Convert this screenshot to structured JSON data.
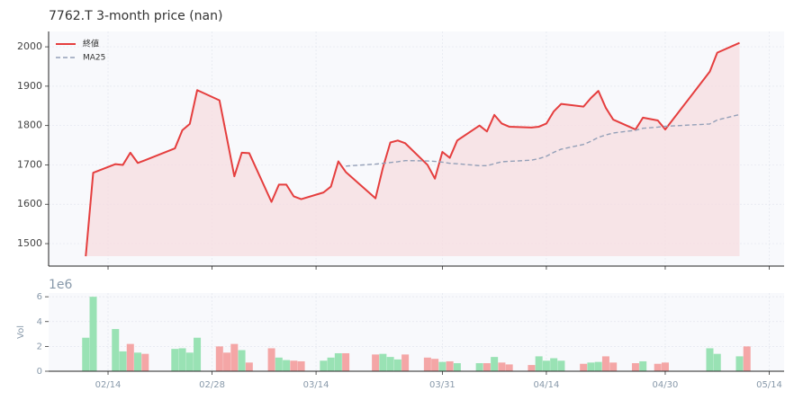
{
  "chart_data": [
    {
      "type": "line",
      "title": "7762.T  3-month price (nan)",
      "x": [
        "02/11",
        "02/12",
        "02/15",
        "02/16",
        "02/17",
        "02/18",
        "02/19",
        "02/23",
        "02/24",
        "02/25",
        "02/26",
        "03/01",
        "03/02",
        "03/03",
        "03/04",
        "03/05",
        "03/08",
        "03/09",
        "03/10",
        "03/11",
        "03/12",
        "03/15",
        "03/16",
        "03/17",
        "03/18",
        "03/22",
        "03/23",
        "03/24",
        "03/25",
        "03/26",
        "03/29",
        "03/30",
        "03/31",
        "04/01",
        "04/02",
        "04/05",
        "04/06",
        "04/07",
        "04/08",
        "04/09",
        "04/12",
        "04/13",
        "04/14",
        "04/15",
        "04/16",
        "04/19",
        "04/20",
        "04/21",
        "04/22",
        "04/23",
        "04/26",
        "04/27",
        "04/29",
        "04/30",
        "05/06",
        "05/07",
        "05/10",
        "05/11"
      ],
      "series": [
        {
          "name": "終値",
          "color": "#e53e3e",
          "fill": "#f7dce0",
          "values": [
            1468,
            1680,
            1702,
            1700,
            1731,
            1705,
            1712,
            1742,
            1788,
            1804,
            1890,
            1864,
            1768,
            1671,
            1731,
            1730,
            1606,
            1650,
            1650,
            1620,
            1613,
            1630,
            1645,
            1709,
            1682,
            1615,
            1693,
            1757,
            1762,
            1755,
            1700,
            1665,
            1733,
            1718,
            1762,
            1800,
            1785,
            1827,
            1805,
            1797,
            1795,
            1797,
            1805,
            1836,
            1855,
            1848,
            1870,
            1888,
            1845,
            1815,
            1790,
            1820,
            1813,
            1790,
            1937,
            1985,
            2010,
            null
          ]
        },
        {
          "name": "MA25",
          "color": "#94a0b8",
          "dash": true,
          "values": [
            null,
            null,
            null,
            null,
            null,
            null,
            null,
            null,
            null,
            null,
            null,
            null,
            null,
            null,
            null,
            null,
            null,
            null,
            null,
            null,
            null,
            null,
            null,
            null,
            1697,
            1702,
            1704,
            1706,
            1708,
            1711,
            1710,
            1709,
            1707,
            1704,
            1703,
            1698,
            1698,
            1703,
            1708,
            1709,
            1712,
            1716,
            1722,
            1732,
            1740,
            1752,
            1760,
            1770,
            1776,
            1781,
            1788,
            1793,
            1796,
            1798,
            1804,
            1814,
            1828,
            null
          ]
        }
      ],
      "xlim": [
        "02/06",
        "05/16"
      ],
      "ylim": [
        1443,
        2039
      ],
      "yticks": [
        1500,
        1600,
        1700,
        1800,
        1900,
        2000
      ],
      "grid": true,
      "legend": "upper left"
    },
    {
      "type": "bar",
      "ylabel": "Vol",
      "offset_label": "1e6",
      "x": [
        "02/11",
        "02/12",
        "02/15",
        "02/16",
        "02/17",
        "02/18",
        "02/19",
        "02/23",
        "02/24",
        "02/25",
        "02/26",
        "03/01",
        "03/02",
        "03/03",
        "03/04",
        "03/05",
        "03/08",
        "03/09",
        "03/10",
        "03/11",
        "03/12",
        "03/15",
        "03/16",
        "03/17",
        "03/18",
        "03/22",
        "03/23",
        "03/24",
        "03/25",
        "03/26",
        "03/29",
        "03/30",
        "03/31",
        "04/01",
        "04/02",
        "04/05",
        "04/06",
        "04/07",
        "04/08",
        "04/09",
        "04/12",
        "04/13",
        "04/14",
        "04/15",
        "04/16",
        "04/19",
        "04/20",
        "04/21",
        "04/22",
        "04/23",
        "04/26",
        "04/27",
        "04/29",
        "04/30",
        "05/06",
        "05/07",
        "05/10",
        "05/11"
      ],
      "values": [
        2.7,
        6.0,
        3.4,
        1.6,
        2.2,
        1.5,
        1.4,
        1.8,
        1.85,
        1.5,
        2.7,
        2.0,
        1.5,
        2.2,
        1.7,
        0.7,
        1.85,
        1.1,
        0.9,
        0.85,
        0.8,
        0.85,
        1.1,
        1.45,
        1.45,
        1.35,
        1.4,
        1.15,
        0.95,
        1.35,
        1.1,
        1.0,
        0.75,
        0.8,
        0.65,
        0.65,
        0.65,
        1.15,
        0.7,
        0.55,
        0.5,
        1.2,
        0.85,
        1.05,
        0.85,
        0.6,
        0.7,
        0.75,
        1.2,
        0.7,
        0.65,
        0.8,
        0.6,
        0.7,
        1.85,
        1.4,
        1.2,
        2.0
      ],
      "colors": [
        "#99e2b4",
        "#99e2b4",
        "#99e2b4",
        "#99e2b4",
        "#f4a6a6",
        "#99e2b4",
        "#f4a6a6",
        "#99e2b4",
        "#99e2b4",
        "#99e2b4",
        "#99e2b4",
        "#f4a6a6",
        "#f4a6a6",
        "#f4a6a6",
        "#99e2b4",
        "#f4a6a6",
        "#f4a6a6",
        "#99e2b4",
        "#99e2b4",
        "#f4a6a6",
        "#f4a6a6",
        "#99e2b4",
        "#99e2b4",
        "#99e2b4",
        "#f4a6a6",
        "#f4a6a6",
        "#99e2b4",
        "#99e2b4",
        "#99e2b4",
        "#f4a6a6",
        "#f4a6a6",
        "#f4a6a6",
        "#99e2b4",
        "#f4a6a6",
        "#99e2b4",
        "#99e2b4",
        "#f4a6a6",
        "#99e2b4",
        "#f4a6a6",
        "#f4a6a6",
        "#f4a6a6",
        "#99e2b4",
        "#99e2b4",
        "#99e2b4",
        "#99e2b4",
        "#f4a6a6",
        "#99e2b4",
        "#99e2b4",
        "#f4a6a6",
        "#f4a6a6",
        "#f4a6a6",
        "#99e2b4",
        "#f4a6a6",
        "#f4a6a6",
        "#99e2b4",
        "#99e2b4",
        "#99e2b4",
        "#f4a6a6"
      ],
      "xlim": [
        "02/06",
        "05/16"
      ],
      "ylim": [
        0,
        6.3
      ],
      "yticks": [
        0,
        2,
        4,
        6
      ],
      "xticks": [
        "02/14",
        "02/28",
        "03/14",
        "03/31",
        "04/14",
        "04/30",
        "05/14"
      ],
      "grid": true
    }
  ]
}
